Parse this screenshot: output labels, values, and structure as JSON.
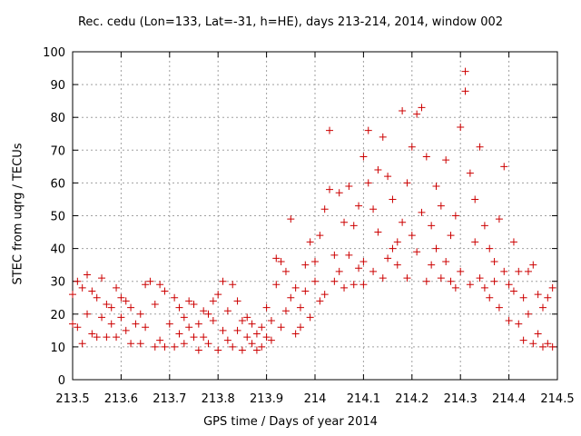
{
  "chart_data": {
    "type": "scatter",
    "title": "Rec. cedu (Lon=133, Lat=-31, h=HE), days 213-214, 2014, window 002",
    "xlabel": "GPS time / Days of year 2014",
    "ylabel": "STEC from uqrg / TECUs",
    "xlim": [
      213.5,
      214.5
    ],
    "ylim": [
      0,
      100
    ],
    "grid": true,
    "marker": "+",
    "color": "#cc0000",
    "x_ticks": [
      "213.5",
      "213.6",
      "213.7",
      "213.8",
      "213.9",
      "214",
      "214.1",
      "214.2",
      "214.3",
      "214.4",
      "214.5"
    ],
    "y_ticks": [
      "0",
      "10",
      "20",
      "30",
      "40",
      "50",
      "60",
      "70",
      "80",
      "90",
      "100"
    ],
    "x_tick_values": [
      213.5,
      213.6,
      213.7,
      213.8,
      213.9,
      214.0,
      214.1,
      214.2,
      214.3,
      214.4,
      214.5
    ],
    "y_tick_values": [
      0,
      10,
      20,
      30,
      40,
      50,
      60,
      70,
      80,
      90,
      100
    ],
    "points": [
      [
        213.5,
        26
      ],
      [
        213.5,
        17
      ],
      [
        213.51,
        30
      ],
      [
        213.51,
        16
      ],
      [
        213.52,
        11
      ],
      [
        213.52,
        28
      ],
      [
        213.53,
        32
      ],
      [
        213.53,
        20
      ],
      [
        213.54,
        14
      ],
      [
        213.54,
        27
      ],
      [
        213.55,
        25
      ],
      [
        213.55,
        13
      ],
      [
        213.56,
        31
      ],
      [
        213.56,
        19
      ],
      [
        213.57,
        23
      ],
      [
        213.57,
        13
      ],
      [
        213.58,
        22
      ],
      [
        213.58,
        17
      ],
      [
        213.59,
        28
      ],
      [
        213.59,
        13
      ],
      [
        213.6,
        25
      ],
      [
        213.6,
        19
      ],
      [
        213.61,
        24
      ],
      [
        213.61,
        15
      ],
      [
        213.62,
        11
      ],
      [
        213.62,
        22
      ],
      [
        213.63,
        17
      ],
      [
        213.64,
        20
      ],
      [
        213.64,
        11
      ],
      [
        213.65,
        16
      ],
      [
        213.65,
        29
      ],
      [
        213.66,
        30
      ],
      [
        213.67,
        23
      ],
      [
        213.67,
        10
      ],
      [
        213.68,
        29
      ],
      [
        213.68,
        12
      ],
      [
        213.69,
        27
      ],
      [
        213.69,
        10
      ],
      [
        213.7,
        17
      ],
      [
        213.71,
        25
      ],
      [
        213.71,
        10
      ],
      [
        213.72,
        22
      ],
      [
        213.72,
        14
      ],
      [
        213.73,
        19
      ],
      [
        213.73,
        11
      ],
      [
        213.74,
        16
      ],
      [
        213.74,
        24
      ],
      [
        213.75,
        13
      ],
      [
        213.75,
        23
      ],
      [
        213.76,
        9
      ],
      [
        213.76,
        17
      ],
      [
        213.77,
        21
      ],
      [
        213.77,
        13
      ],
      [
        213.78,
        20
      ],
      [
        213.78,
        11
      ],
      [
        213.79,
        24
      ],
      [
        213.79,
        18
      ],
      [
        213.8,
        26
      ],
      [
        213.8,
        9
      ],
      [
        213.81,
        15
      ],
      [
        213.81,
        30
      ],
      [
        213.82,
        21
      ],
      [
        213.82,
        12
      ],
      [
        213.83,
        29
      ],
      [
        213.83,
        10
      ],
      [
        213.84,
        24
      ],
      [
        213.84,
        15
      ],
      [
        213.85,
        18
      ],
      [
        213.85,
        9
      ],
      [
        213.86,
        19
      ],
      [
        213.86,
        13
      ],
      [
        213.87,
        11
      ],
      [
        213.87,
        17
      ],
      [
        213.88,
        9
      ],
      [
        213.88,
        14
      ],
      [
        213.89,
        16
      ],
      [
        213.89,
        10
      ],
      [
        213.9,
        22
      ],
      [
        213.9,
        13
      ],
      [
        213.91,
        12
      ],
      [
        213.91,
        18
      ],
      [
        213.92,
        37
      ],
      [
        213.92,
        29
      ],
      [
        213.93,
        16
      ],
      [
        213.93,
        36
      ],
      [
        213.94,
        33
      ],
      [
        213.94,
        21
      ],
      [
        213.95,
        49
      ],
      [
        213.95,
        25
      ],
      [
        213.96,
        14
      ],
      [
        213.96,
        28
      ],
      [
        213.97,
        22
      ],
      [
        213.97,
        16
      ],
      [
        213.98,
        35
      ],
      [
        213.98,
        27
      ],
      [
        213.99,
        42
      ],
      [
        213.99,
        19
      ],
      [
        214.0,
        30
      ],
      [
        214.0,
        36
      ],
      [
        214.01,
        24
      ],
      [
        214.01,
        44
      ],
      [
        214.02,
        52
      ],
      [
        214.02,
        26
      ],
      [
        214.03,
        76
      ],
      [
        214.03,
        58
      ],
      [
        214.04,
        38
      ],
      [
        214.04,
        30
      ],
      [
        214.05,
        57
      ],
      [
        214.05,
        33
      ],
      [
        214.06,
        48
      ],
      [
        214.06,
        28
      ],
      [
        214.07,
        59
      ],
      [
        214.07,
        38
      ],
      [
        214.08,
        47
      ],
      [
        214.08,
        29
      ],
      [
        214.09,
        53
      ],
      [
        214.09,
        34
      ],
      [
        214.1,
        68
      ],
      [
        214.1,
        36
      ],
      [
        214.1,
        29
      ],
      [
        214.11,
        76
      ],
      [
        214.11,
        60
      ],
      [
        214.12,
        52
      ],
      [
        214.12,
        33
      ],
      [
        214.13,
        64
      ],
      [
        214.13,
        45
      ],
      [
        214.14,
        74
      ],
      [
        214.14,
        31
      ],
      [
        214.15,
        62
      ],
      [
        214.15,
        37
      ],
      [
        214.16,
        55
      ],
      [
        214.16,
        40
      ],
      [
        214.17,
        42
      ],
      [
        214.17,
        35
      ],
      [
        214.18,
        82
      ],
      [
        214.18,
        48
      ],
      [
        214.19,
        60
      ],
      [
        214.19,
        31
      ],
      [
        214.2,
        71
      ],
      [
        214.2,
        44
      ],
      [
        214.21,
        81
      ],
      [
        214.21,
        39
      ],
      [
        214.22,
        83
      ],
      [
        214.22,
        51
      ],
      [
        214.23,
        68
      ],
      [
        214.23,
        30
      ],
      [
        214.24,
        47
      ],
      [
        214.24,
        35
      ],
      [
        214.25,
        59
      ],
      [
        214.25,
        40
      ],
      [
        214.26,
        53
      ],
      [
        214.26,
        31
      ],
      [
        214.27,
        67
      ],
      [
        214.27,
        36
      ],
      [
        214.28,
        44
      ],
      [
        214.28,
        30
      ],
      [
        214.29,
        50
      ],
      [
        214.29,
        28
      ],
      [
        214.3,
        77
      ],
      [
        214.3,
        33
      ],
      [
        214.31,
        94
      ],
      [
        214.31,
        88
      ],
      [
        214.32,
        63
      ],
      [
        214.32,
        29
      ],
      [
        214.33,
        55
      ],
      [
        214.33,
        42
      ],
      [
        214.34,
        71
      ],
      [
        214.34,
        31
      ],
      [
        214.35,
        47
      ],
      [
        214.35,
        28
      ],
      [
        214.36,
        40
      ],
      [
        214.36,
        25
      ],
      [
        214.37,
        36
      ],
      [
        214.37,
        30
      ],
      [
        214.38,
        49
      ],
      [
        214.38,
        22
      ],
      [
        214.39,
        65
      ],
      [
        214.39,
        33
      ],
      [
        214.4,
        29
      ],
      [
        214.4,
        18
      ],
      [
        214.41,
        42
      ],
      [
        214.41,
        27
      ],
      [
        214.42,
        17
      ],
      [
        214.42,
        33
      ],
      [
        214.43,
        12
      ],
      [
        214.43,
        25
      ],
      [
        214.44,
        20
      ],
      [
        214.44,
        33
      ],
      [
        214.45,
        11
      ],
      [
        214.45,
        35
      ],
      [
        214.46,
        26
      ],
      [
        214.46,
        14
      ],
      [
        214.47,
        22
      ],
      [
        214.47,
        10
      ],
      [
        214.48,
        25
      ],
      [
        214.48,
        11
      ],
      [
        214.49,
        28
      ],
      [
        214.49,
        10
      ]
    ]
  }
}
